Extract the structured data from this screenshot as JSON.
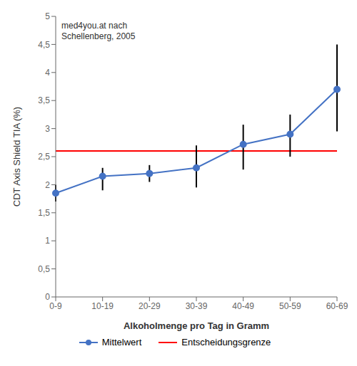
{
  "chart_data": {
    "type": "line",
    "categories": [
      "0-9",
      "10-19",
      "20-29",
      "30-39",
      "40-49",
      "50-59",
      "60-69"
    ],
    "series": [
      {
        "name": "Mittelwert",
        "color": "#4472C4",
        "marker": "circle",
        "values": [
          1.85,
          2.15,
          2.2,
          2.3,
          2.72,
          2.9,
          3.7
        ],
        "error_low": [
          0.15,
          0.25,
          0.15,
          0.35,
          0.45,
          0.4,
          0.75
        ],
        "error_high": [
          0.15,
          0.15,
          0.15,
          0.4,
          0.35,
          0.35,
          0.8
        ],
        "error_color": "#000000"
      }
    ],
    "reference_line": {
      "name": "Entscheidungsgrenze",
      "value": 2.6,
      "color": "#FF0000"
    },
    "xlabel": "Alkoholmenge pro Tag in Gramm",
    "ylabel": "CDT Axis Shield  TIA (%)",
    "annotation": "med4you.at nach\nSchellenberg, 2005",
    "ylim": [
      0,
      5.0
    ],
    "yticks": [
      0,
      {
        "value": 0.5,
        "label": "0,5"
      },
      1,
      {
        "value": 1.5,
        "label": "1,5"
      },
      2,
      {
        "value": 2.5,
        "label": "2,5"
      },
      3,
      {
        "value": 3.5,
        "label": "3,5"
      },
      4,
      {
        "value": 4.5,
        "label": "4,5"
      },
      5
    ],
    "grid": false,
    "legend": "bottom"
  }
}
